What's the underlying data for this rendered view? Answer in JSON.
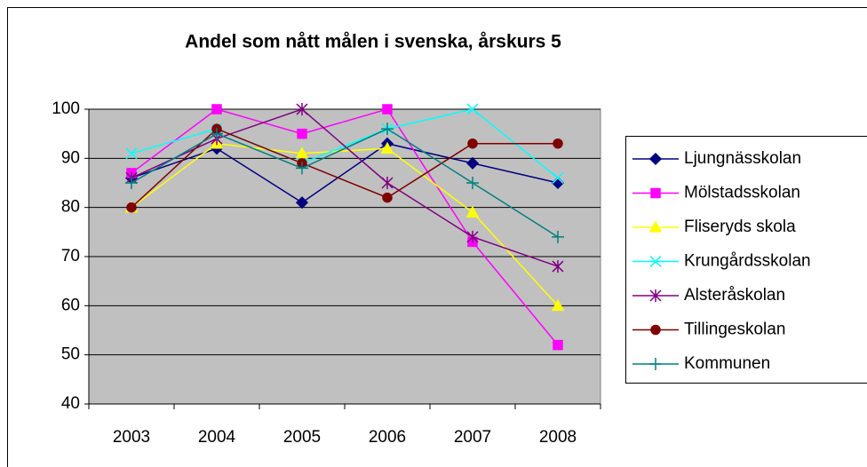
{
  "chart_data": {
    "type": "line",
    "title": "Andel som nått målen i svenska, årskurs 5",
    "categories": [
      "2003",
      "2004",
      "2005",
      "2006",
      "2007",
      "2008"
    ],
    "ylim": [
      40,
      100
    ],
    "yticks": [
      40,
      50,
      60,
      70,
      80,
      90,
      100
    ],
    "grid": true,
    "legend": "right",
    "series": [
      {
        "name": "Ljungnässkolan",
        "color": "#000080",
        "marker": "diamond",
        "values": [
          86,
          92,
          81,
          93,
          89,
          85
        ]
      },
      {
        "name": "Mölstadsskolan",
        "color": "#ff00ff",
        "marker": "square",
        "values": [
          87,
          100,
          95,
          100,
          73,
          52
        ]
      },
      {
        "name": "Fliseryds skola",
        "color": "#ffff00",
        "marker": "triangle",
        "values": [
          80,
          93,
          91,
          92,
          79,
          60
        ]
      },
      {
        "name": "Krungårdsskolan",
        "color": "#00ffff",
        "marker": "x",
        "values": [
          91,
          96,
          89,
          96,
          100,
          86
        ]
      },
      {
        "name": "Alsteråskolan",
        "color": "#800080",
        "marker": "star",
        "values": [
          86,
          94,
          100,
          85,
          74,
          68
        ]
      },
      {
        "name": "Tillingeskolan",
        "color": "#800000",
        "marker": "circle",
        "values": [
          80,
          96,
          89,
          82,
          93,
          93
        ]
      },
      {
        "name": "Kommunen",
        "color": "#008080",
        "marker": "plus",
        "values": [
          85,
          95,
          88,
          96,
          85,
          74
        ]
      }
    ]
  }
}
